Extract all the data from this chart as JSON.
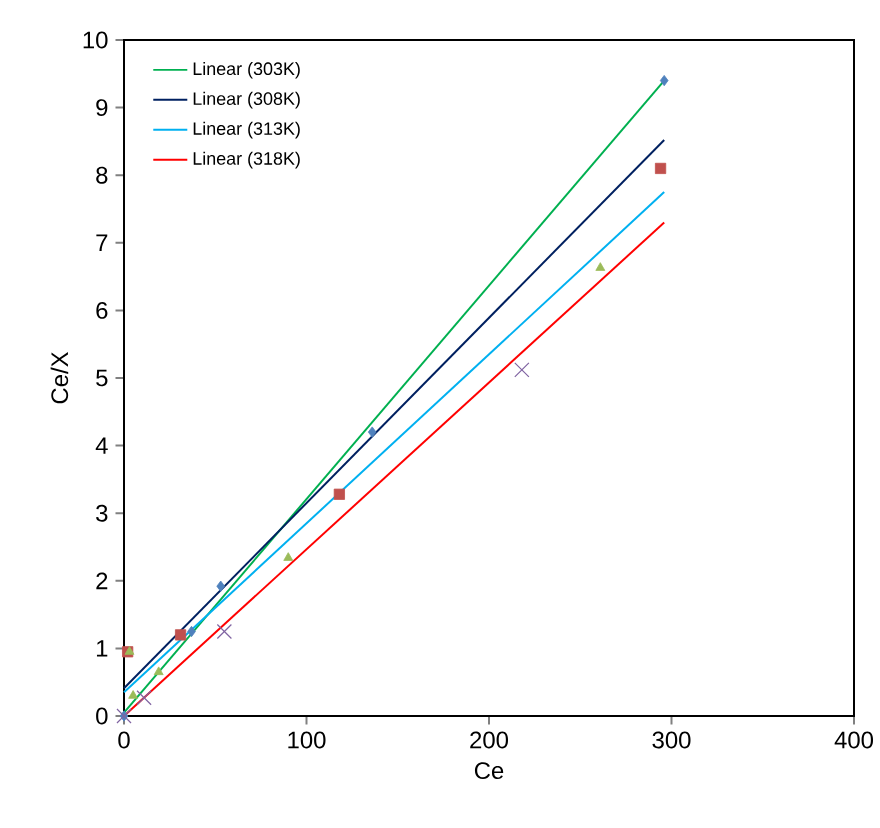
{
  "chart_data": {
    "type": "scatter",
    "xlabel": "Ce",
    "ylabel": "Ce/X",
    "xlim": [
      0,
      400
    ],
    "xticks": [
      0,
      100,
      200,
      300,
      400
    ],
    "ylim": [
      0,
      10
    ],
    "yticks": [
      0,
      1,
      2,
      3,
      4,
      5,
      6,
      7,
      8,
      9,
      10
    ],
    "grid": false,
    "legend": "top left",
    "series": [
      {
        "marker": "diamond",
        "color": "#4f81bd",
        "x": [
          0,
          37,
          53,
          136,
          296
        ],
        "values": [
          0,
          1.25,
          1.92,
          4.2,
          9.4
        ]
      },
      {
        "marker": "square",
        "color": "#c0504d",
        "x": [
          2,
          31,
          118,
          294
        ],
        "values": [
          0.95,
          1.2,
          3.28,
          8.1
        ]
      },
      {
        "marker": "triangle",
        "color": "#9bbb59",
        "x": [
          3,
          5,
          19,
          90,
          261
        ],
        "values": [
          0.95,
          0.3,
          0.65,
          2.34,
          6.63
        ]
      },
      {
        "marker": "cross",
        "color": "#8064a2",
        "x": [
          0,
          11,
          55,
          218
        ],
        "values": [
          0,
          0.27,
          1.25,
          5.12
        ]
      },
      {
        "type": "line",
        "marker": "none",
        "name": "Linear (303K)",
        "color": "#00b050",
        "x": [
          0,
          296
        ],
        "values": [
          0.05,
          9.4
        ]
      },
      {
        "type": "line",
        "marker": "none",
        "name": "Linear (308K)",
        "color": "#002060",
        "x": [
          0,
          296
        ],
        "values": [
          0.41,
          8.52
        ]
      },
      {
        "type": "line",
        "marker": "none",
        "name": "Linear (313K)",
        "color": "#00b0f0",
        "x": [
          0,
          296
        ],
        "values": [
          0.35,
          7.75
        ]
      },
      {
        "type": "line",
        "marker": "none",
        "name": "Linear (318K)",
        "color": "#ff0000",
        "x": [
          0,
          296
        ],
        "values": [
          0.0,
          7.3
        ]
      }
    ]
  }
}
